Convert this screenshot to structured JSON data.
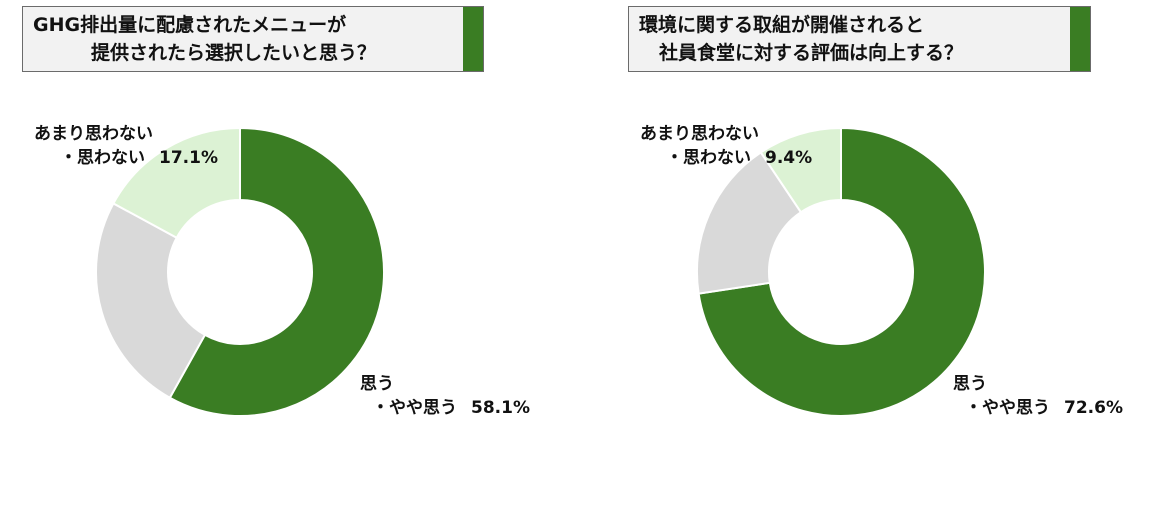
{
  "colors": {
    "agree": "#3a7d23",
    "neutral": "#d9d9d9",
    "disagree": "#dcf2d4",
    "accent": "#3a7d23"
  },
  "chart_data": [
    {
      "type": "pie",
      "title_lines": [
        "GHG排出量に配慮されたメニューが",
        "提供されたら選択したいと思う？"
      ],
      "slices": [
        {
          "label_lines": [
            "思う",
            "・やや思う"
          ],
          "value": 58.1,
          "value_text": "58.1%",
          "color": "#3a7d23"
        },
        {
          "label_lines": [],
          "value": 24.8,
          "value_text": "",
          "color": "#d9d9d9"
        },
        {
          "label_lines": [
            "あまり思わない",
            "・思わない"
          ],
          "value": 17.1,
          "value_text": "17.1%",
          "color": "#dcf2d4"
        }
      ]
    },
    {
      "type": "pie",
      "title_lines": [
        "環境に関する取組が開催されると",
        "社員食堂に対する評価は向上する？"
      ],
      "slices": [
        {
          "label_lines": [
            "思う",
            "・やや思う"
          ],
          "value": 72.6,
          "value_text": "72.6%",
          "color": "#3a7d23"
        },
        {
          "label_lines": [],
          "value": 18.0,
          "value_text": "",
          "color": "#d9d9d9"
        },
        {
          "label_lines": [
            "あまり思わない",
            "・思わない"
          ],
          "value": 9.4,
          "value_text": "9.4%",
          "color": "#dcf2d4"
        }
      ]
    }
  ]
}
